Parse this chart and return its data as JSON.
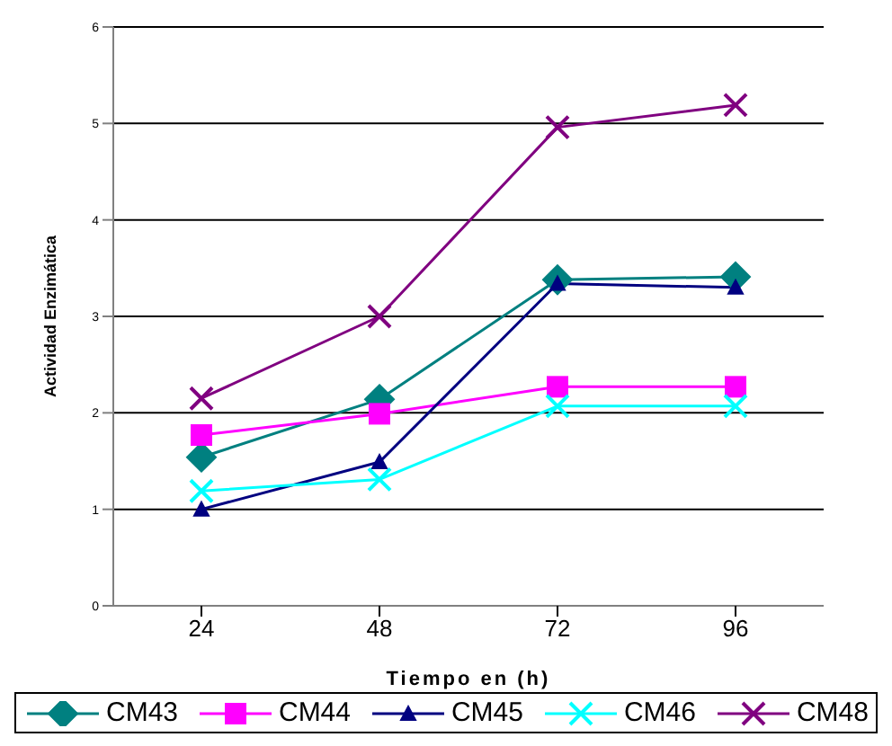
{
  "chart_data": {
    "type": "line",
    "xlabel": "Tiempo en  (h)",
    "ylabel": "Actividad Enzimática",
    "categories": [
      "24",
      "48",
      "72",
      "96"
    ],
    "series": [
      {
        "name": "CM43",
        "color": "#008080",
        "marker": "diamond",
        "values": [
          1.54,
          2.14,
          3.38,
          3.41
        ]
      },
      {
        "name": "CM44",
        "color": "#ff00ff",
        "marker": "square",
        "values": [
          1.77,
          1.99,
          2.27,
          2.27
        ]
      },
      {
        "name": "CM45",
        "color": "#000080",
        "marker": "triangle",
        "values": [
          1.0,
          1.49,
          3.34,
          3.3
        ]
      },
      {
        "name": "CM46",
        "color": "#00ffff",
        "marker": "cross",
        "values": [
          1.19,
          1.31,
          2.07,
          2.07
        ]
      },
      {
        "name": "CM48",
        "color": "#800080",
        "marker": "cross",
        "values": [
          2.15,
          3.0,
          4.96,
          5.19
        ]
      }
    ],
    "ylim": [
      0,
      6
    ],
    "yticks": [
      0,
      1,
      2,
      3,
      4,
      5,
      6
    ],
    "grid": "y",
    "legend": "bottom"
  }
}
